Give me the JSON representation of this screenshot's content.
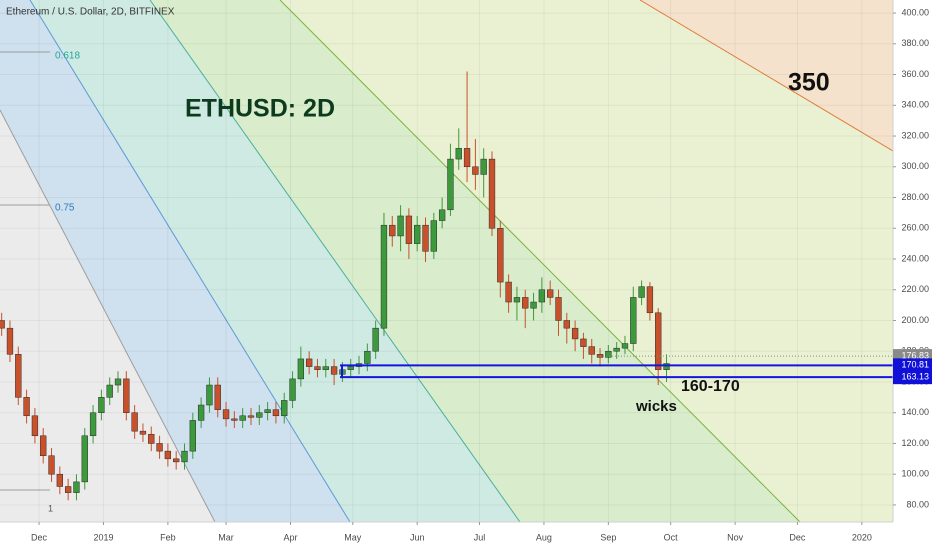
{
  "chart_data": {
    "type": "candlestick",
    "title": "Ethereum / U.S. Dollar, 2D, BITFINEX",
    "up_color": "#3c9a3c",
    "down_color": "#c8502a",
    "grid": true,
    "xlim": [
      -18.8,
      411
    ],
    "ylim": [
      68.9,
      408.5
    ],
    "xticks": [
      {
        "value": 0,
        "label": "Dec"
      },
      {
        "value": 31,
        "label": "2019"
      },
      {
        "value": 62,
        "label": "Feb"
      },
      {
        "value": 90,
        "label": "Mar"
      },
      {
        "value": 121,
        "label": "Apr"
      },
      {
        "value": 151,
        "label": "May"
      },
      {
        "value": 182,
        "label": "Jun"
      },
      {
        "value": 212,
        "label": "Jul"
      },
      {
        "value": 243,
        "label": "Aug"
      },
      {
        "value": 274,
        "label": "Sep"
      },
      {
        "value": 304,
        "label": "Oct"
      },
      {
        "value": 335,
        "label": "Nov"
      },
      {
        "value": 365,
        "label": "Dec"
      },
      {
        "value": 396,
        "label": "2020"
      }
    ],
    "yticks": [
      {
        "value": 80,
        "label": "80.00"
      },
      {
        "value": 100,
        "label": "100.00"
      },
      {
        "value": 120,
        "label": "120.00"
      },
      {
        "value": 140,
        "label": "140.00"
      },
      {
        "value": 160,
        "label": "160.00"
      },
      {
        "value": 180,
        "label": "180.00"
      },
      {
        "value": 200,
        "label": "200.00"
      },
      {
        "value": 220,
        "label": "220.00"
      },
      {
        "value": 240,
        "label": "240.00"
      },
      {
        "value": 260,
        "label": "260.00"
      },
      {
        "value": 280,
        "label": "280.00"
      },
      {
        "value": 300,
        "label": "300.00"
      },
      {
        "value": 320,
        "label": "320.00"
      },
      {
        "value": 340,
        "label": "340.00"
      },
      {
        "value": 360,
        "label": "360.00"
      },
      {
        "value": 380,
        "label": "380.00"
      },
      {
        "value": 400,
        "label": "400.00"
      }
    ],
    "x": [
      -18,
      -14,
      -10,
      -6,
      -2,
      2,
      6,
      10,
      14,
      18,
      22,
      26,
      30,
      34,
      38,
      42,
      46,
      50,
      54,
      58,
      62,
      66,
      70,
      74,
      78,
      82,
      86,
      90,
      94,
      98,
      102,
      106,
      110,
      114,
      118,
      122,
      126,
      130,
      134,
      138,
      142,
      146,
      150,
      154,
      158,
      162,
      166,
      170,
      174,
      178,
      182,
      186,
      190,
      194,
      198,
      202,
      206,
      210,
      214,
      218,
      222,
      226,
      230,
      234,
      238,
      242,
      246,
      250,
      254,
      258,
      262,
      266,
      270,
      274,
      278,
      282,
      286,
      290,
      294,
      298,
      302
    ],
    "open": [
      200,
      195,
      178,
      150,
      138,
      125,
      112,
      100,
      92,
      88,
      95,
      125,
      140,
      150,
      158,
      162,
      140,
      128,
      126,
      120,
      115,
      110,
      108,
      115,
      135,
      145,
      158,
      142,
      136,
      135,
      138,
      137,
      140,
      142,
      138,
      148,
      162,
      175,
      170,
      168,
      170,
      165,
      168,
      170,
      172,
      180,
      195,
      262,
      255,
      268,
      250,
      262,
      245,
      265,
      272,
      305,
      312,
      300,
      295,
      305,
      260,
      225,
      212,
      215,
      208,
      212,
      220,
      215,
      200,
      195,
      188,
      183,
      178,
      176,
      180,
      182,
      185,
      215,
      222,
      205,
      168
    ],
    "high": [
      205,
      200,
      183,
      155,
      143,
      130,
      117,
      105,
      97,
      100,
      130,
      145,
      155,
      163,
      167,
      167,
      145,
      133,
      131,
      125,
      120,
      115,
      120,
      140,
      150,
      163,
      163,
      147,
      141,
      143,
      143,
      145,
      147,
      147,
      153,
      167,
      183,
      180,
      175,
      175,
      175,
      173,
      175,
      177,
      185,
      200,
      270,
      268,
      275,
      273,
      268,
      267,
      270,
      280,
      315,
      325,
      362,
      318,
      312,
      310,
      265,
      230,
      222,
      220,
      218,
      228,
      226,
      220,
      205,
      200,
      192,
      188,
      182,
      184,
      186,
      190,
      222,
      226,
      225,
      208,
      178
    ],
    "low": [
      190,
      173,
      145,
      133,
      120,
      107,
      95,
      87,
      83,
      83,
      90,
      120,
      135,
      145,
      153,
      135,
      123,
      121,
      115,
      110,
      105,
      103,
      103,
      110,
      130,
      140,
      137,
      131,
      130,
      130,
      132,
      132,
      135,
      133,
      133,
      143,
      157,
      165,
      163,
      163,
      158,
      160,
      163,
      165,
      167,
      175,
      190,
      248,
      245,
      240,
      245,
      238,
      240,
      260,
      268,
      298,
      290,
      285,
      280,
      255,
      215,
      205,
      200,
      195,
      200,
      205,
      210,
      190,
      185,
      180,
      175,
      172,
      170,
      172,
      175,
      178,
      180,
      210,
      200,
      158,
      160
    ],
    "close": [
      195,
      178,
      150,
      138,
      125,
      112,
      100,
      92,
      88,
      95,
      125,
      140,
      150,
      158,
      162,
      140,
      128,
      126,
      120,
      115,
      110,
      108,
      115,
      135,
      145,
      158,
      142,
      136,
      135,
      138,
      137,
      140,
      142,
      138,
      148,
      162,
      175,
      170,
      168,
      170,
      165,
      168,
      170,
      172,
      180,
      195,
      262,
      255,
      268,
      250,
      262,
      245,
      265,
      272,
      305,
      312,
      300,
      295,
      305,
      260,
      225,
      212,
      215,
      208,
      212,
      220,
      215,
      200,
      195,
      188,
      183,
      178,
      176,
      180,
      182,
      185,
      215,
      222,
      205,
      168,
      172
    ],
    "last_price": 176.83,
    "support_lines": [
      170.81,
      163.13
    ],
    "fib_labels": [
      "0.618",
      "0.75",
      "1"
    ],
    "annotations": [
      "ETHUSD: 2D",
      "350",
      "160-170",
      "wicks"
    ]
  }
}
